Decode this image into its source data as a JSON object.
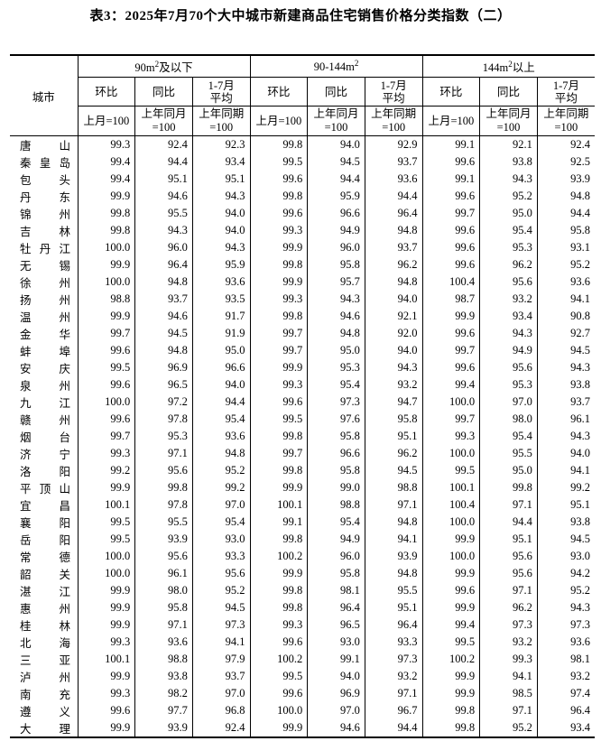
{
  "title": "表3：2025年7月70个大中城市新建商品住宅销售价格分类指数（二）",
  "header": {
    "city": "城市",
    "groups": [
      {
        "pre": "90m",
        "sup": "2",
        "post": "及以下"
      },
      {
        "pre": "90-144m",
        "sup": "2",
        "post": ""
      },
      {
        "pre": "144m",
        "sup": "2",
        "post": "以上"
      }
    ],
    "sub": [
      {
        "l1": "环比",
        "l2": "",
        "b1": "上月=100",
        "b2": ""
      },
      {
        "l1": "同比",
        "l2": "",
        "b1": "上年同月",
        "b2": "=100"
      },
      {
        "l1": "1-7月",
        "l2": "平均",
        "b1": "上年同期",
        "b2": "=100"
      }
    ]
  },
  "rows": [
    {
      "city": "唐山",
      "v": [
        "99.3",
        "92.4",
        "92.3",
        "99.8",
        "94.0",
        "92.9",
        "99.1",
        "92.1",
        "92.4"
      ]
    },
    {
      "city": "秦皇岛",
      "v": [
        "99.4",
        "94.4",
        "93.4",
        "99.5",
        "94.5",
        "93.7",
        "99.6",
        "93.8",
        "92.5"
      ]
    },
    {
      "city": "包头",
      "v": [
        "99.4",
        "95.1",
        "95.1",
        "99.6",
        "94.4",
        "93.6",
        "99.1",
        "94.3",
        "93.9"
      ]
    },
    {
      "city": "丹东",
      "v": [
        "99.9",
        "94.6",
        "94.3",
        "99.8",
        "95.9",
        "94.4",
        "99.6",
        "95.2",
        "94.8"
      ]
    },
    {
      "city": "锦州",
      "v": [
        "99.8",
        "95.5",
        "94.0",
        "99.6",
        "96.6",
        "96.4",
        "99.7",
        "95.0",
        "94.4"
      ]
    },
    {
      "city": "吉林",
      "v": [
        "99.8",
        "94.3",
        "94.0",
        "99.3",
        "94.9",
        "94.8",
        "99.6",
        "95.4",
        "95.8"
      ]
    },
    {
      "city": "牡丹江",
      "v": [
        "100.0",
        "96.0",
        "94.3",
        "99.9",
        "96.0",
        "93.7",
        "99.6",
        "95.3",
        "93.1"
      ]
    },
    {
      "city": "无锡",
      "v": [
        "99.9",
        "96.4",
        "95.9",
        "99.8",
        "95.8",
        "96.2",
        "99.6",
        "96.2",
        "95.2"
      ]
    },
    {
      "city": "徐州",
      "v": [
        "100.0",
        "94.8",
        "93.6",
        "99.9",
        "95.7",
        "94.8",
        "100.4",
        "95.6",
        "93.6"
      ]
    },
    {
      "city": "扬州",
      "v": [
        "98.8",
        "93.7",
        "93.5",
        "99.3",
        "94.3",
        "94.0",
        "98.7",
        "93.2",
        "94.1"
      ]
    },
    {
      "city": "温州",
      "v": [
        "99.9",
        "94.6",
        "91.7",
        "99.8",
        "94.6",
        "92.1",
        "99.9",
        "93.4",
        "90.8"
      ]
    },
    {
      "city": "金华",
      "v": [
        "99.7",
        "94.5",
        "91.9",
        "99.7",
        "94.8",
        "92.0",
        "99.6",
        "94.3",
        "92.7"
      ]
    },
    {
      "city": "蚌埠",
      "v": [
        "99.6",
        "94.8",
        "95.0",
        "99.7",
        "95.0",
        "94.0",
        "99.7",
        "94.9",
        "94.5"
      ]
    },
    {
      "city": "安庆",
      "v": [
        "99.5",
        "96.9",
        "96.6",
        "99.9",
        "95.3",
        "94.3",
        "99.6",
        "95.6",
        "94.3"
      ]
    },
    {
      "city": "泉州",
      "v": [
        "99.6",
        "96.5",
        "94.0",
        "99.3",
        "95.4",
        "93.2",
        "99.4",
        "95.3",
        "93.8"
      ]
    },
    {
      "city": "九江",
      "v": [
        "100.0",
        "97.2",
        "94.4",
        "99.6",
        "97.3",
        "94.7",
        "100.0",
        "97.0",
        "93.7"
      ]
    },
    {
      "city": "赣州",
      "v": [
        "99.6",
        "97.8",
        "95.4",
        "99.5",
        "97.6",
        "95.8",
        "99.7",
        "98.0",
        "96.1"
      ]
    },
    {
      "city": "烟台",
      "v": [
        "99.7",
        "95.3",
        "93.6",
        "99.8",
        "95.8",
        "95.1",
        "99.3",
        "95.4",
        "94.3"
      ]
    },
    {
      "city": "济宁",
      "v": [
        "99.3",
        "97.1",
        "94.8",
        "99.7",
        "96.6",
        "96.2",
        "100.0",
        "95.5",
        "94.0"
      ]
    },
    {
      "city": "洛阳",
      "v": [
        "99.2",
        "95.6",
        "95.2",
        "99.8",
        "95.8",
        "94.5",
        "99.5",
        "95.0",
        "94.1"
      ]
    },
    {
      "city": "平顶山",
      "v": [
        "99.9",
        "99.8",
        "99.2",
        "99.9",
        "99.0",
        "98.8",
        "100.1",
        "99.8",
        "99.2"
      ]
    },
    {
      "city": "宜昌",
      "v": [
        "100.1",
        "97.8",
        "97.0",
        "100.1",
        "98.8",
        "97.1",
        "100.4",
        "97.1",
        "95.1"
      ]
    },
    {
      "city": "襄阳",
      "v": [
        "99.5",
        "95.5",
        "95.4",
        "99.1",
        "95.4",
        "94.8",
        "100.0",
        "94.4",
        "93.8"
      ]
    },
    {
      "city": "岳阳",
      "v": [
        "99.5",
        "93.9",
        "93.0",
        "99.8",
        "94.9",
        "94.1",
        "99.9",
        "95.1",
        "94.5"
      ]
    },
    {
      "city": "常德",
      "v": [
        "100.0",
        "95.6",
        "93.3",
        "100.2",
        "96.0",
        "93.9",
        "100.0",
        "95.6",
        "93.0"
      ]
    },
    {
      "city": "韶关",
      "v": [
        "100.0",
        "96.1",
        "95.6",
        "99.9",
        "95.8",
        "94.8",
        "99.9",
        "95.6",
        "94.2"
      ]
    },
    {
      "city": "湛江",
      "v": [
        "99.9",
        "98.0",
        "95.2",
        "99.8",
        "98.1",
        "95.5",
        "99.6",
        "97.1",
        "95.2"
      ]
    },
    {
      "city": "惠州",
      "v": [
        "99.9",
        "95.8",
        "94.5",
        "99.8",
        "96.4",
        "95.1",
        "99.9",
        "96.2",
        "94.3"
      ]
    },
    {
      "city": "桂林",
      "v": [
        "99.9",
        "97.1",
        "97.3",
        "99.3",
        "96.5",
        "96.4",
        "99.4",
        "97.3",
        "97.3"
      ]
    },
    {
      "city": "北海",
      "v": [
        "99.3",
        "93.6",
        "94.1",
        "99.6",
        "93.0",
        "93.3",
        "99.5",
        "93.2",
        "93.6"
      ]
    },
    {
      "city": "三亚",
      "v": [
        "100.1",
        "98.8",
        "97.9",
        "100.2",
        "99.1",
        "97.3",
        "100.2",
        "99.3",
        "98.1"
      ]
    },
    {
      "city": "泸州",
      "v": [
        "99.9",
        "93.8",
        "93.7",
        "99.5",
        "94.0",
        "93.2",
        "99.9",
        "94.1",
        "93.2"
      ]
    },
    {
      "city": "南充",
      "v": [
        "99.3",
        "98.2",
        "97.0",
        "99.6",
        "96.9",
        "97.1",
        "99.9",
        "98.5",
        "97.4"
      ]
    },
    {
      "city": "遵义",
      "v": [
        "99.6",
        "97.7",
        "96.8",
        "100.0",
        "97.0",
        "96.7",
        "99.8",
        "97.1",
        "96.4"
      ]
    },
    {
      "city": "大理",
      "v": [
        "99.9",
        "93.9",
        "92.4",
        "99.9",
        "94.6",
        "94.4",
        "99.8",
        "95.2",
        "93.4"
      ]
    }
  ]
}
